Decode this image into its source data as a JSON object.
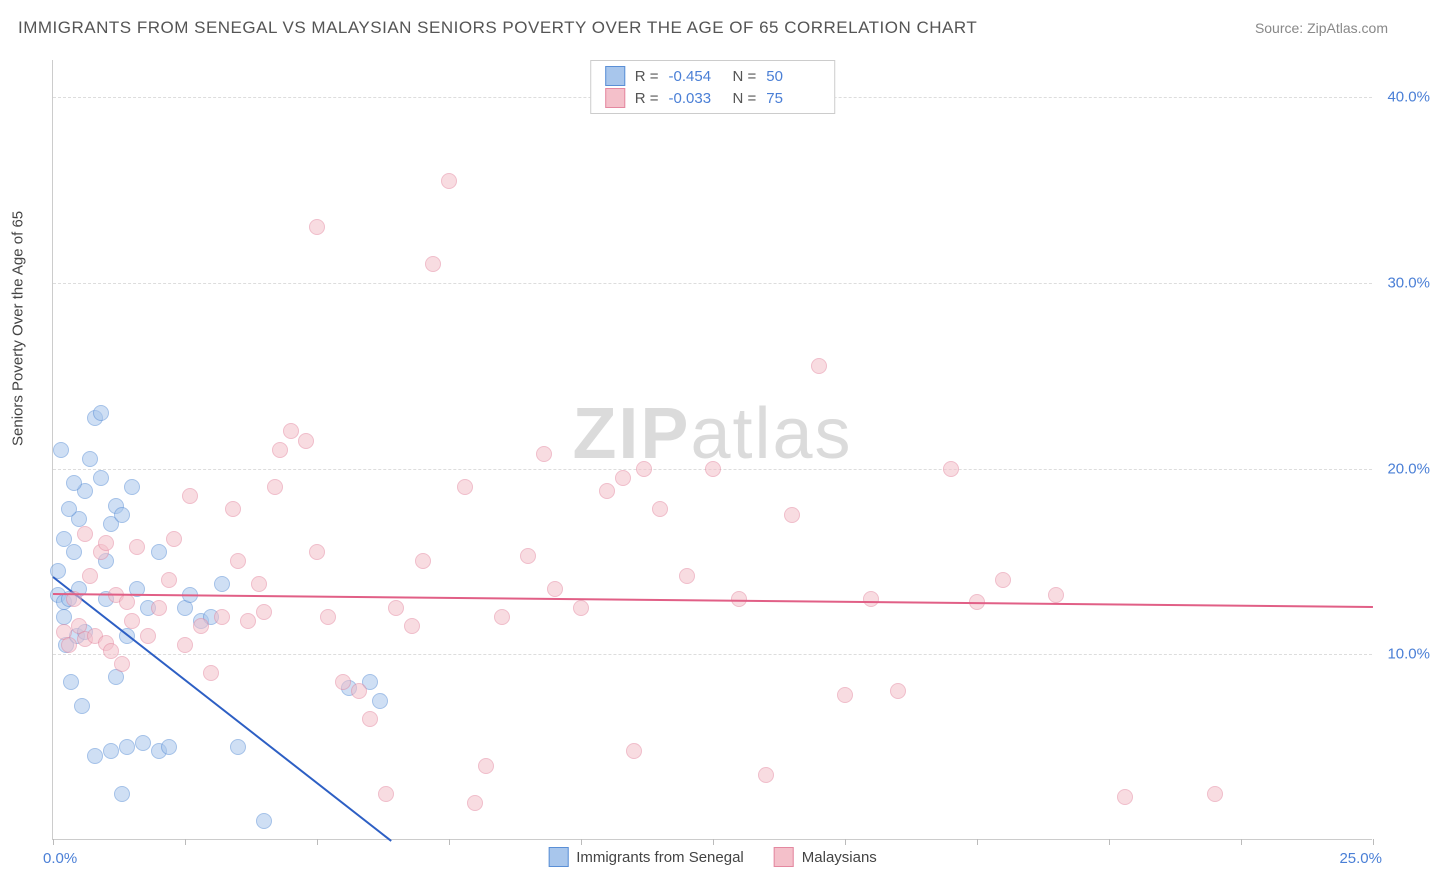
{
  "title": "IMMIGRANTS FROM SENEGAL VS MALAYSIAN SENIORS POVERTY OVER THE AGE OF 65 CORRELATION CHART",
  "source": "Source: ZipAtlas.com",
  "watermark_bold": "ZIP",
  "watermark_light": "atlas",
  "y_axis_title": "Seniors Poverty Over the Age of 65",
  "chart": {
    "type": "scatter",
    "xlim": [
      0,
      25
    ],
    "ylim": [
      0,
      42
    ],
    "x_ticks": [
      0,
      2.5,
      5,
      7.5,
      10,
      12.5,
      15,
      17.5,
      20,
      22.5,
      25
    ],
    "x_label_min": "0.0%",
    "x_label_max": "25.0%",
    "y_gridlines": [
      10,
      20,
      30,
      40
    ],
    "y_tick_labels": [
      "10.0%",
      "20.0%",
      "30.0%",
      "40.0%"
    ],
    "background_color": "#ffffff",
    "grid_color": "#dddddd",
    "axis_color": "#cccccc",
    "tick_label_color": "#4a7fd6",
    "point_radius": 8,
    "point_opacity": 0.55,
    "series": [
      {
        "name": "Immigrants from Senegal",
        "fill": "#a8c6ec",
        "stroke": "#5a8fd6",
        "line_color": "#2d5fc4",
        "R": "-0.454",
        "N": "50",
        "trend": {
          "x1": 0,
          "y1": 14.2,
          "x2": 6.4,
          "y2": 0
        },
        "points": [
          [
            0.1,
            13.2
          ],
          [
            0.2,
            12.8
          ],
          [
            0.3,
            13.0
          ],
          [
            0.1,
            14.5
          ],
          [
            0.4,
            15.5
          ],
          [
            0.2,
            16.2
          ],
          [
            0.5,
            17.3
          ],
          [
            0.3,
            17.8
          ],
          [
            0.6,
            18.8
          ],
          [
            0.4,
            19.2
          ],
          [
            0.7,
            20.5
          ],
          [
            0.15,
            21.0
          ],
          [
            0.8,
            22.7
          ],
          [
            0.9,
            23.0
          ],
          [
            0.25,
            10.5
          ],
          [
            0.45,
            11.0
          ],
          [
            0.6,
            11.2
          ],
          [
            0.35,
            8.5
          ],
          [
            0.55,
            7.2
          ],
          [
            0.2,
            12.0
          ],
          [
            1.0,
            13.0
          ],
          [
            1.1,
            17.0
          ],
          [
            1.2,
            18.0
          ],
          [
            1.3,
            17.5
          ],
          [
            1.5,
            19.0
          ],
          [
            1.8,
            12.5
          ],
          [
            1.6,
            13.5
          ],
          [
            1.4,
            11.0
          ],
          [
            1.2,
            8.8
          ],
          [
            1.0,
            15.0
          ],
          [
            2.0,
            4.8
          ],
          [
            2.2,
            5.0
          ],
          [
            1.7,
            5.2
          ],
          [
            1.4,
            5.0
          ],
          [
            2.5,
            12.5
          ],
          [
            2.8,
            11.8
          ],
          [
            3.0,
            12.0
          ],
          [
            3.5,
            5.0
          ],
          [
            4.0,
            1.0
          ],
          [
            3.2,
            13.8
          ],
          [
            2.6,
            13.2
          ],
          [
            2.0,
            15.5
          ],
          [
            0.8,
            4.5
          ],
          [
            1.1,
            4.8
          ],
          [
            1.3,
            2.5
          ],
          [
            6.2,
            7.5
          ],
          [
            6.0,
            8.5
          ],
          [
            5.6,
            8.2
          ],
          [
            0.5,
            13.5
          ],
          [
            0.9,
            19.5
          ]
        ]
      },
      {
        "name": "Malaysians",
        "fill": "#f4c0ca",
        "stroke": "#e488a0",
        "line_color": "#e15f86",
        "R": "-0.033",
        "N": "75",
        "trend": {
          "x1": 0,
          "y1": 13.3,
          "x2": 25,
          "y2": 12.6
        },
        "points": [
          [
            0.2,
            11.2
          ],
          [
            0.3,
            10.5
          ],
          [
            0.5,
            11.5
          ],
          [
            0.6,
            10.8
          ],
          [
            0.8,
            11.0
          ],
          [
            1.0,
            10.6
          ],
          [
            0.4,
            13.0
          ],
          [
            0.7,
            14.2
          ],
          [
            0.9,
            15.5
          ],
          [
            1.1,
            10.2
          ],
          [
            1.3,
            9.5
          ],
          [
            1.5,
            11.8
          ],
          [
            1.2,
            13.2
          ],
          [
            1.8,
            11.0
          ],
          [
            2.0,
            12.5
          ],
          [
            2.2,
            14.0
          ],
          [
            2.5,
            10.5
          ],
          [
            2.8,
            11.5
          ],
          [
            3.0,
            9.0
          ],
          [
            3.2,
            12.0
          ],
          [
            3.5,
            15.0
          ],
          [
            3.7,
            11.8
          ],
          [
            4.0,
            12.3
          ],
          [
            4.2,
            19.0
          ],
          [
            4.5,
            22.0
          ],
          [
            4.8,
            21.5
          ],
          [
            5.0,
            33.0
          ],
          [
            5.2,
            12.0
          ],
          [
            5.5,
            8.5
          ],
          [
            5.8,
            8.0
          ],
          [
            6.0,
            6.5
          ],
          [
            6.3,
            2.5
          ],
          [
            6.5,
            12.5
          ],
          [
            7.0,
            15.0
          ],
          [
            7.2,
            31.0
          ],
          [
            7.5,
            35.5
          ],
          [
            7.8,
            19.0
          ],
          [
            8.0,
            2.0
          ],
          [
            8.2,
            4.0
          ],
          [
            8.5,
            12.0
          ],
          [
            9.0,
            15.3
          ],
          [
            9.3,
            20.8
          ],
          [
            10.0,
            12.5
          ],
          [
            10.5,
            18.8
          ],
          [
            10.8,
            19.5
          ],
          [
            11.0,
            4.8
          ],
          [
            11.2,
            20.0
          ],
          [
            11.5,
            17.8
          ],
          [
            12.0,
            14.2
          ],
          [
            12.5,
            20.0
          ],
          [
            13.0,
            13.0
          ],
          [
            13.5,
            3.5
          ],
          [
            14.0,
            17.5
          ],
          [
            14.5,
            25.5
          ],
          [
            15.0,
            7.8
          ],
          [
            15.5,
            13.0
          ],
          [
            16.0,
            8.0
          ],
          [
            17.0,
            20.0
          ],
          [
            17.5,
            12.8
          ],
          [
            18.0,
            14.0
          ],
          [
            19.0,
            13.2
          ],
          [
            20.3,
            2.3
          ],
          [
            22.0,
            2.5
          ],
          [
            4.3,
            21.0
          ],
          [
            3.4,
            17.8
          ],
          [
            2.6,
            18.5
          ],
          [
            1.0,
            16.0
          ],
          [
            0.6,
            16.5
          ],
          [
            5.0,
            15.5
          ],
          [
            6.8,
            11.5
          ],
          [
            9.5,
            13.5
          ],
          [
            1.6,
            15.8
          ],
          [
            2.3,
            16.2
          ],
          [
            3.9,
            13.8
          ],
          [
            1.4,
            12.8
          ]
        ]
      }
    ]
  },
  "legend_top_labels": {
    "R": "R =",
    "N": "N ="
  }
}
